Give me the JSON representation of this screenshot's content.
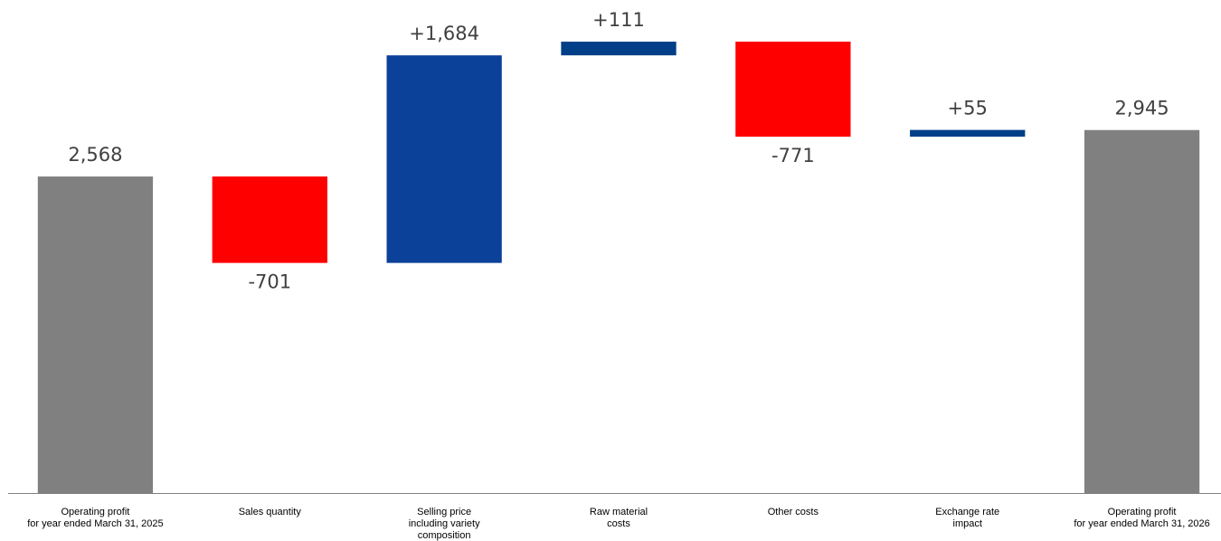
{
  "chart_data": {
    "type": "waterfall",
    "categories": [
      [
        "Operating profit",
        "for year ended March 31, 2025"
      ],
      [
        "Sales quantity"
      ],
      [
        "Selling price",
        "including variety",
        "composition"
      ],
      [
        "Raw material",
        "costs"
      ],
      [
        "Other costs"
      ],
      [
        "Exchange rate",
        "impact"
      ],
      [
        "Operating profit",
        "for year ended March 31, 2026"
      ]
    ],
    "values": [
      2568,
      -701,
      1684,
      111,
      -771,
      55,
      2945
    ],
    "value_labels": [
      "2,568",
      "-701",
      "+1,684",
      "+111",
      "-771",
      "+55",
      "2,945"
    ],
    "measure": [
      "absolute",
      "relative",
      "relative",
      "relative",
      "relative",
      "relative",
      "absolute"
    ],
    "colors": [
      "#808080",
      "#ff0000",
      "#0b4199",
      "#003f87",
      "#ff0000",
      "#003f87",
      "#808080"
    ],
    "ylim": [
      0,
      4000
    ]
  }
}
